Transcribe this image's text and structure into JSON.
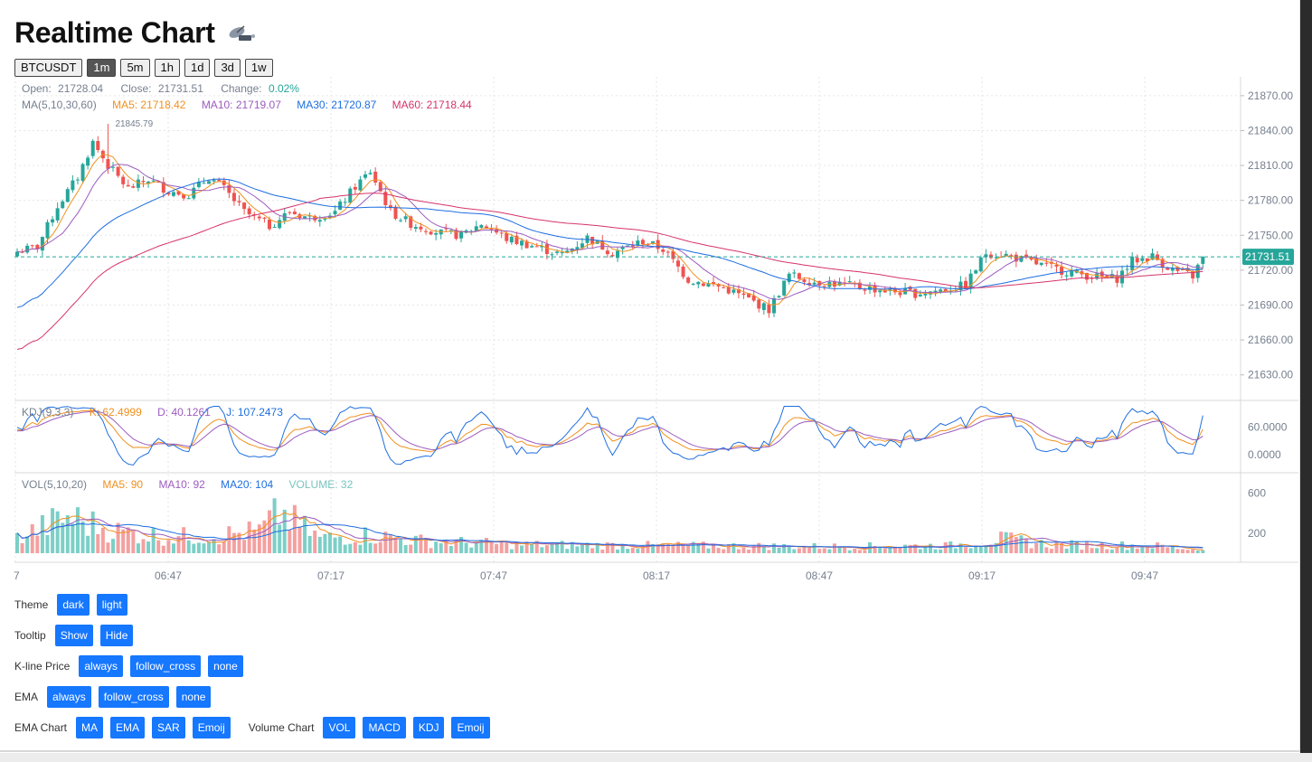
{
  "app": {
    "title": "Realtime Chart",
    "title_emoji": "satellite-dish-icon"
  },
  "symbol": "BTCUSDT",
  "periods": [
    "1m",
    "5m",
    "1h",
    "1d",
    "3d",
    "1w"
  ],
  "active_period": "1m",
  "legend": {
    "open_label": "Open:",
    "open": "21728.04",
    "close_label": "Close:",
    "close": "21731.51",
    "change_label": "Change:",
    "change": "0.02%",
    "ma_title": "MA(5,10,30,60)",
    "ma5": "MA5: 21718.42",
    "ma10": "MA10: 21719.07",
    "ma30": "MA30: 21720.87",
    "ma60": "MA60: 21718.44",
    "high_marker": "21845.79",
    "last_price_tag": "21731.51"
  },
  "kdj_legend": {
    "title": "KDJ(9,3,3)",
    "k": "K: 62.4999",
    "d": "D: 40.1261",
    "j": "J: 107.2473"
  },
  "vol_legend": {
    "title": "VOL(5,10,20)",
    "ma5": "MA5: 90",
    "ma10": "MA10: 92",
    "ma20": "MA20: 104",
    "volume": "VOLUME: 32"
  },
  "colors": {
    "up": "#26a69a",
    "down": "#ef5350",
    "ma5": "#f0901e",
    "ma10": "#9c5cbf",
    "ma30": "#1e6ee0",
    "ma60": "#d6336c",
    "accent": "#1677ff",
    "grid": "#e6e6e6",
    "text": "#76808f"
  },
  "controls": {
    "theme": {
      "label": "Theme",
      "options": [
        "dark",
        "light"
      ]
    },
    "tooltip": {
      "label": "Tooltip",
      "options": [
        "Show",
        "Hide"
      ]
    },
    "kline_price": {
      "label": "K-line Price",
      "options": [
        "always",
        "follow_cross",
        "none"
      ]
    },
    "ema": {
      "label": "EMA",
      "options": [
        "always",
        "follow_cross",
        "none"
      ]
    },
    "ema_chart": {
      "label": "EMA Chart",
      "options": [
        "MA",
        "EMA",
        "SAR",
        "Emoij"
      ]
    },
    "volume_chart": {
      "label": "Volume Chart",
      "options": [
        "VOL",
        "MACD",
        "KDJ",
        "Emoij"
      ]
    }
  },
  "chart_data": {
    "type": "candlestick",
    "time_ticks": [
      "7",
      "06:47",
      "07:17",
      "07:47",
      "08:17",
      "08:47",
      "09:17",
      "09:47"
    ],
    "price_axis": {
      "ticks": [
        "21870.00",
        "21840.00",
        "21810.00",
        "21780.00",
        "21750.00",
        "21720.00",
        "21690.00",
        "21660.00",
        "21630.00"
      ],
      "ylim": [
        21615,
        21880
      ]
    },
    "kdj_axis": {
      "ticks": [
        "60.0000",
        "0.0000"
      ],
      "ylim": [
        -30,
        110
      ]
    },
    "vol_axis": {
      "ticks": [
        "600",
        "200"
      ],
      "ylim": [
        0,
        800
      ]
    },
    "close_anchors": [
      [
        0,
        21736
      ],
      [
        4,
        21740
      ],
      [
        8,
        21775
      ],
      [
        12,
        21800
      ],
      [
        15,
        21830
      ],
      [
        18,
        21810
      ],
      [
        22,
        21790
      ],
      [
        26,
        21798
      ],
      [
        30,
        21788
      ],
      [
        34,
        21785
      ],
      [
        38,
        21800
      ],
      [
        41,
        21790
      ],
      [
        45,
        21770
      ],
      [
        50,
        21758
      ],
      [
        54,
        21770
      ],
      [
        58,
        21765
      ],
      [
        63,
        21770
      ],
      [
        67,
        21792
      ],
      [
        70,
        21805
      ],
      [
        74,
        21770
      ],
      [
        78,
        21760
      ],
      [
        84,
        21752
      ],
      [
        88,
        21750
      ],
      [
        92,
        21760
      ],
      [
        97,
        21747
      ],
      [
        103,
        21740
      ],
      [
        108,
        21733
      ],
      [
        113,
        21748
      ],
      [
        118,
        21735
      ],
      [
        124,
        21745
      ],
      [
        128,
        21738
      ],
      [
        133,
        21712
      ],
      [
        140,
        21705
      ],
      [
        145,
        21695
      ],
      [
        149,
        21686
      ],
      [
        153,
        21716
      ],
      [
        158,
        21710
      ],
      [
        163,
        21708
      ],
      [
        168,
        21705
      ],
      [
        173,
        21702
      ],
      [
        178,
        21700
      ],
      [
        183,
        21703
      ],
      [
        188,
        21707
      ],
      [
        192,
        21735
      ],
      [
        196,
        21733
      ],
      [
        200,
        21728
      ],
      [
        205,
        21722
      ],
      [
        209,
        21718
      ],
      [
        214,
        21714
      ],
      [
        218,
        21713
      ],
      [
        221,
        21728
      ],
      [
        225,
        21732
      ],
      [
        229,
        21720
      ],
      [
        233,
        21715
      ],
      [
        235,
        21731
      ]
    ],
    "volume_anchors": [
      [
        0,
        160
      ],
      [
        10,
        380
      ],
      [
        15,
        300
      ],
      [
        20,
        230
      ],
      [
        30,
        170
      ],
      [
        40,
        190
      ],
      [
        48,
        230
      ],
      [
        52,
        420
      ],
      [
        60,
        160
      ],
      [
        70,
        190
      ],
      [
        80,
        130
      ],
      [
        100,
        90
      ],
      [
        130,
        80
      ],
      [
        160,
        70
      ],
      [
        185,
        80
      ],
      [
        195,
        150
      ],
      [
        205,
        90
      ],
      [
        225,
        80
      ],
      [
        235,
        32
      ]
    ],
    "last_close": 21731.51,
    "last_change_pct": 0.02,
    "high_marker_value": 21845.79
  }
}
